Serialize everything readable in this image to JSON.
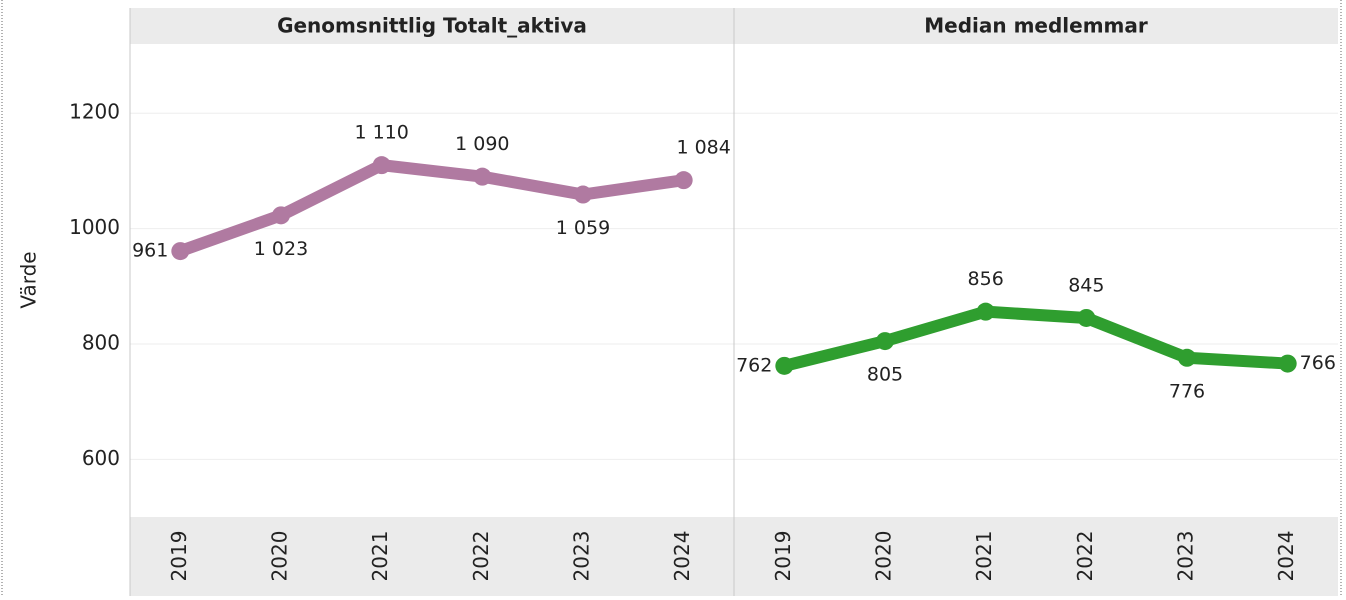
{
  "chart_data": {
    "type": "line",
    "y_label": "Värde",
    "categories": [
      "2019",
      "2020",
      "2021",
      "2022",
      "2023",
      "2024"
    ],
    "series": [
      {
        "name": "Genomsnittlig Totalt_aktiva",
        "color": "#b07aa1",
        "values": [
          961,
          1023,
          1110,
          1090,
          1059,
          1084
        ],
        "value_labels": [
          "961",
          "1 023",
          "1 110",
          "1 090",
          "1 059",
          "1 084"
        ]
      },
      {
        "name": "Median medlemmar",
        "color": "#2f9e2f",
        "values": [
          762,
          805,
          856,
          845,
          776,
          766
        ],
        "value_labels": [
          "762",
          "805",
          "856",
          "845",
          "776",
          "766"
        ]
      }
    ],
    "ylim": [
      500,
      1320
    ],
    "yticks": [
      600,
      800,
      1000,
      1200
    ],
    "grid": true
  }
}
